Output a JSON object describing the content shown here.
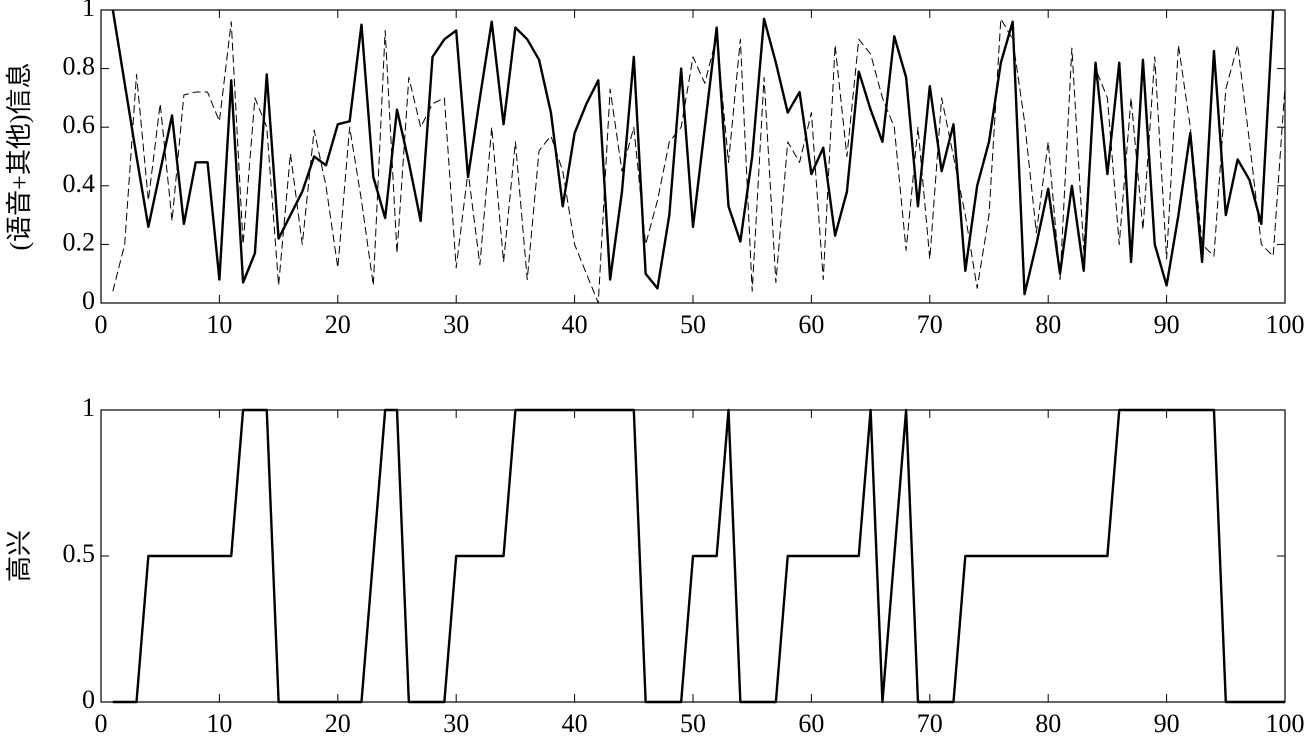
{
  "chart_data": [
    {
      "type": "line",
      "ylabel": "(语音+其他)信息",
      "xlim": [
        0,
        100
      ],
      "xticks": [
        0,
        10,
        20,
        30,
        40,
        50,
        60,
        70,
        80,
        90,
        100
      ],
      "ylim": [
        0,
        1
      ],
      "yticks": [
        0,
        0.2,
        0.4,
        0.6,
        0.8,
        1
      ],
      "series": [
        {
          "color": "#000000",
          "style": "solid",
          "width": 2.4,
          "x": [
            1,
            2,
            3,
            4,
            5,
            6,
            7,
            8,
            9,
            10,
            11,
            12,
            13,
            14,
            15,
            16,
            17,
            18,
            19,
            20,
            21,
            22,
            23,
            24,
            25,
            26,
            27,
            28,
            29,
            30,
            31,
            32,
            33,
            34,
            35,
            36,
            37,
            38,
            39,
            40,
            41,
            42,
            43,
            44,
            45,
            46,
            47,
            48,
            49,
            50,
            51,
            52,
            53,
            54,
            55,
            56,
            57,
            58,
            59,
            60,
            61,
            62,
            63,
            64,
            65,
            66,
            67,
            68,
            69,
            70,
            71,
            72,
            73,
            74,
            75,
            76,
            77,
            78,
            79,
            80,
            81,
            82,
            83,
            84,
            85,
            86,
            87,
            88,
            89,
            90,
            91,
            92,
            93,
            94,
            95,
            96,
            97,
            98,
            99
          ],
          "values": [
            1,
            0.75,
            0.5,
            0.26,
            0.45,
            0.64,
            0.27,
            0.48,
            0.48,
            0.08,
            0.76,
            0.07,
            0.17,
            0.78,
            0.22,
            0.3,
            0.38,
            0.5,
            0.47,
            0.61,
            0.62,
            0.95,
            0.43,
            0.29,
            0.66,
            0.48,
            0.28,
            0.84,
            0.9,
            0.93,
            0.43,
            0.7,
            0.96,
            0.61,
            0.94,
            0.9,
            0.83,
            0.65,
            0.33,
            0.58,
            0.68,
            0.76,
            0.08,
            0.38,
            0.84,
            0.1,
            0.05,
            0.3,
            0.8,
            0.26,
            0.6,
            0.94,
            0.33,
            0.21,
            0.5,
            0.97,
            0.82,
            0.65,
            0.72,
            0.44,
            0.53,
            0.23,
            0.38,
            0.79,
            0.66,
            0.55,
            0.91,
            0.77,
            0.33,
            0.74,
            0.45,
            0.61,
            0.11,
            0.4,
            0.55,
            0.82,
            0.96,
            0.03,
            0.2,
            0.39,
            0.1,
            0.4,
            0.11,
            0.82,
            0.44,
            0.82,
            0.14,
            0.83,
            0.2,
            0.06,
            0.3,
            0.58,
            0.14,
            0.86,
            0.3,
            0.49,
            0.42,
            0.27,
            1
          ]
        },
        {
          "color": "#000000",
          "style": "dashed",
          "width": 1,
          "x": [
            1,
            2,
            3,
            4,
            5,
            6,
            7,
            8,
            9,
            10,
            11,
            12,
            13,
            14,
            15,
            16,
            17,
            18,
            19,
            20,
            21,
            22,
            23,
            24,
            25,
            26,
            27,
            28,
            29,
            30,
            31,
            32,
            33,
            34,
            35,
            36,
            37,
            38,
            39,
            40,
            41,
            42,
            43,
            44,
            45,
            46,
            47,
            48,
            49,
            50,
            51,
            52,
            53,
            54,
            55,
            56,
            57,
            58,
            59,
            60,
            61,
            62,
            63,
            64,
            65,
            66,
            67,
            68,
            69,
            70,
            71,
            72,
            73,
            74,
            75,
            76,
            77,
            78,
            79,
            80,
            81,
            82,
            83,
            84,
            85,
            86,
            87,
            88,
            89,
            90,
            91,
            92,
            93,
            94,
            95,
            96,
            97,
            98,
            99,
            100
          ],
          "values": [
            0.04,
            0.2,
            0.78,
            0.35,
            0.68,
            0.28,
            0.71,
            0.72,
            0.72,
            0.62,
            0.96,
            0.2,
            0.7,
            0.6,
            0.06,
            0.51,
            0.2,
            0.59,
            0.4,
            0.12,
            0.6,
            0.35,
            0.06,
            0.93,
            0.17,
            0.77,
            0.6,
            0.68,
            0.7,
            0.12,
            0.45,
            0.13,
            0.6,
            0.14,
            0.55,
            0.08,
            0.52,
            0.57,
            0.45,
            0.2,
            0.1,
            0,
            0.73,
            0.45,
            0.6,
            0.2,
            0.35,
            0.55,
            0.6,
            0.84,
            0.75,
            0.91,
            0.48,
            0.9,
            0.04,
            0.77,
            0.07,
            0.55,
            0.48,
            0.65,
            0.08,
            0.88,
            0.5,
            0.9,
            0.85,
            0.7,
            0.6,
            0.18,
            0.6,
            0.15,
            0.7,
            0.5,
            0.3,
            0.05,
            0.3,
            0.97,
            0.9,
            0.62,
            0.24,
            0.55,
            0.08,
            0.87,
            0.18,
            0.8,
            0.7,
            0.2,
            0.7,
            0.25,
            0.84,
            0.15,
            0.88,
            0.6,
            0.2,
            0.16,
            0.73,
            0.88,
            0.55,
            0.2,
            0.16,
            0.74
          ]
        }
      ]
    },
    {
      "type": "line",
      "ylabel": "高兴",
      "xlim": [
        0,
        100
      ],
      "xticks": [
        0,
        10,
        20,
        30,
        40,
        50,
        60,
        70,
        80,
        90,
        100
      ],
      "ylim": [
        0,
        1
      ],
      "yticks": [
        0,
        0.5,
        1
      ],
      "series": [
        {
          "color": "#000000",
          "style": "solid",
          "width": 2.4,
          "x": [
            1,
            2,
            3,
            4,
            5,
            6,
            7,
            8,
            9,
            10,
            11,
            12,
            13,
            14,
            15,
            16,
            17,
            18,
            19,
            20,
            21,
            22,
            23,
            24,
            25,
            26,
            27,
            28,
            29,
            30,
            31,
            32,
            33,
            34,
            35,
            36,
            37,
            38,
            39,
            40,
            41,
            42,
            43,
            44,
            45,
            46,
            47,
            48,
            49,
            50,
            51,
            52,
            53,
            54,
            55,
            56,
            57,
            58,
            59,
            60,
            61,
            62,
            63,
            64,
            65,
            66,
            67,
            68,
            69,
            70,
            71,
            72,
            73,
            74,
            75,
            76,
            77,
            78,
            79,
            80,
            81,
            82,
            83,
            84,
            85,
            86,
            87,
            88,
            89,
            90,
            91,
            92,
            93,
            94,
            95,
            96,
            97,
            98,
            99,
            100
          ],
          "values": [
            0,
            0,
            0,
            0.5,
            0.5,
            0.5,
            0.5,
            0.5,
            0.5,
            0.5,
            0.5,
            1,
            1,
            1,
            0,
            0,
            0,
            0,
            0,
            0,
            0,
            0,
            0.5,
            1,
            1,
            0,
            0,
            0,
            0,
            0.5,
            0.5,
            0.5,
            0.5,
            0.5,
            1,
            1,
            1,
            1,
            1,
            1,
            1,
            1,
            1,
            1,
            1,
            0,
            0,
            0,
            0,
            0.5,
            0.5,
            0.5,
            1,
            0,
            0,
            0,
            0,
            0.5,
            0.5,
            0.5,
            0.5,
            0.5,
            0.5,
            0.5,
            1,
            0,
            0.5,
            1,
            0,
            0,
            0,
            0,
            0.5,
            0.5,
            0.5,
            0.5,
            0.5,
            0.5,
            0.5,
            0.5,
            0.5,
            0.5,
            0.5,
            0.5,
            0.5,
            1,
            1,
            1,
            1,
            1,
            1,
            1,
            1,
            1,
            0,
            0,
            0,
            0,
            0,
            0
          ]
        }
      ]
    }
  ]
}
